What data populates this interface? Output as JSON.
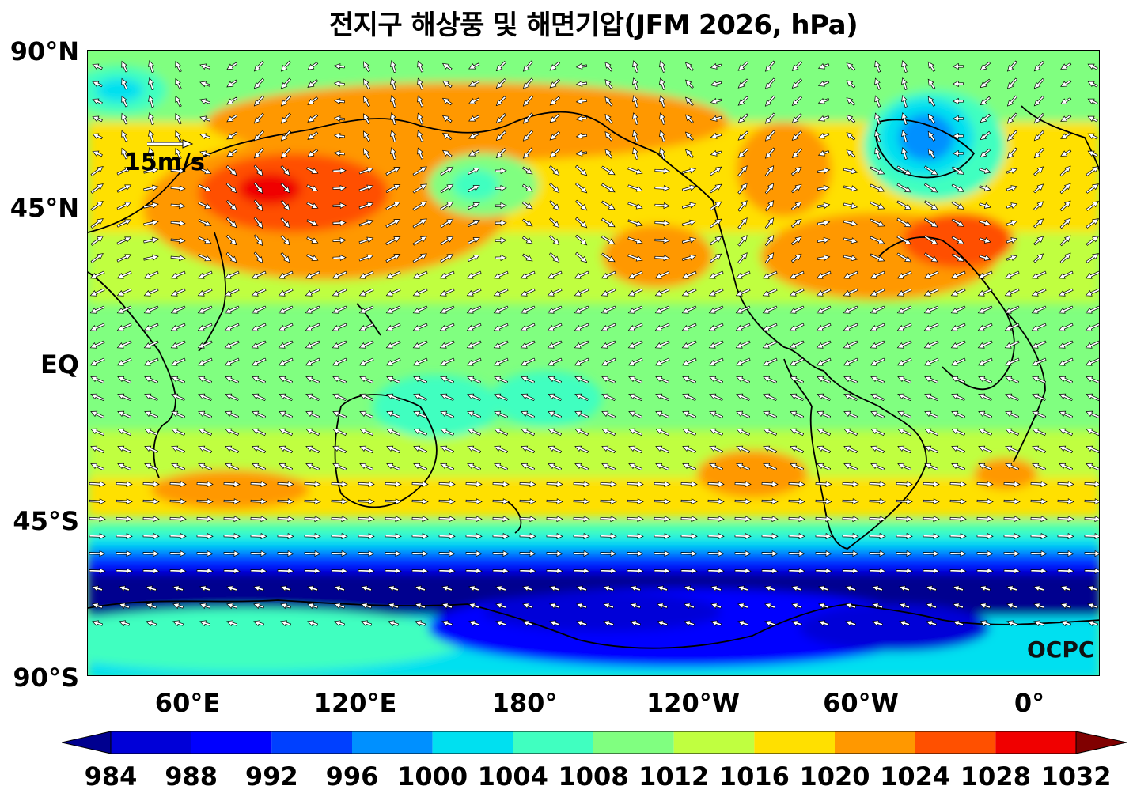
{
  "title": "전지구 해상풍 및 해면기압(JFM 2026, hPa)",
  "map": {
    "y_axis_labels": [
      "90°N",
      "45°N",
      "EQ",
      "45°S",
      "90°S"
    ],
    "x_axis_labels": [
      "60°E",
      "120°E",
      "180°",
      "120°W",
      "60°W",
      "0°"
    ],
    "reference_vector_label": "15m/s",
    "watermark": "OCPC"
  },
  "colorbar": {
    "ticks": [
      "984",
      "988",
      "992",
      "996",
      "1000",
      "1004",
      "1008",
      "1012",
      "1016",
      "1020",
      "1024",
      "1028",
      "1032"
    ],
    "colors": [
      "#00008f",
      "#0000d8",
      "#0000ff",
      "#0040ff",
      "#0090ff",
      "#00e0f0",
      "#40ffc0",
      "#80ff80",
      "#c0ff40",
      "#ffe000",
      "#ff9800",
      "#ff5000",
      "#f00000",
      "#800000"
    ]
  }
}
